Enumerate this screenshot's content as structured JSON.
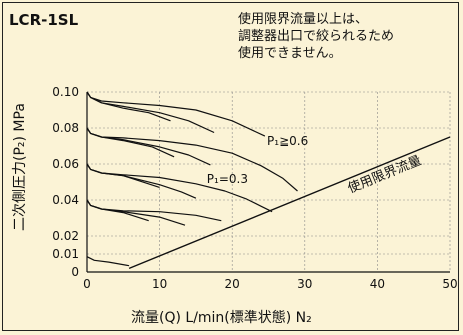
{
  "chart_data": {
    "type": "line",
    "title": "LCR-1SL",
    "note_lines": [
      "使用限界流量以上は、",
      "調整器出口で絞られるため",
      "使用できません。"
    ],
    "xlabel": "流量(Q) L/min(標準状態) N₂",
    "ylabel": "二次側圧力(P₂) MPa",
    "xlim": [
      0,
      50
    ],
    "ylim": [
      0,
      0.1
    ],
    "x_ticks": [
      "0",
      "10",
      "20",
      "30",
      "40",
      "50"
    ],
    "y_ticks": [
      "0",
      "0.01",
      "0.02",
      "0.04",
      "0.06",
      "0.08",
      "0.10"
    ],
    "y_tick_values": [
      0,
      0.01,
      0.02,
      0.04,
      0.06,
      0.08,
      0.1
    ],
    "x_tick_values": [
      0,
      10,
      20,
      30,
      40,
      50
    ],
    "grid": true,
    "annotations": [
      {
        "text": "P₁≧0.6",
        "x": 24.8,
        "y": 0.0705
      },
      {
        "text": "P₁=0.3",
        "x": 16.5,
        "y": 0.0495
      }
    ],
    "limit_line": {
      "name": "使用限界流量",
      "x": [
        5.8,
        50
      ],
      "y": [
        0.002,
        0.075
      ]
    },
    "series": [
      {
        "x": [
          0,
          0.5,
          2,
          5,
          10,
          15,
          20,
          24.5
        ],
        "y": [
          0.1,
          0.097,
          0.095,
          0.094,
          0.0925,
          0.09,
          0.084,
          0.0755
        ]
      },
      {
        "x": [
          0,
          0.5,
          2,
          5,
          10,
          14,
          17.5
        ],
        "y": [
          0.1,
          0.097,
          0.094,
          0.092,
          0.0885,
          0.084,
          0.0775
        ]
      },
      {
        "x": [
          0,
          0.5,
          2,
          5,
          8.5,
          11.5
        ],
        "y": [
          0.1,
          0.097,
          0.094,
          0.091,
          0.0885,
          0.084
        ]
      },
      {
        "x": [
          0,
          0.5,
          2,
          5,
          10,
          15,
          20,
          24,
          27,
          29
        ],
        "y": [
          0.08,
          0.077,
          0.075,
          0.0745,
          0.073,
          0.0705,
          0.066,
          0.059,
          0.052,
          0.045
        ]
      },
      {
        "x": [
          0,
          0.5,
          2,
          5,
          10,
          14,
          17
        ],
        "y": [
          0.08,
          0.077,
          0.075,
          0.0735,
          0.0695,
          0.065,
          0.0595
        ]
      },
      {
        "x": [
          0,
          0.5,
          2,
          5,
          9,
          12
        ],
        "y": [
          0.08,
          0.077,
          0.075,
          0.073,
          0.0695,
          0.064
        ]
      },
      {
        "x": [
          0,
          0.5,
          2,
          5,
          10,
          15,
          19,
          22,
          24,
          25.5
        ],
        "y": [
          0.06,
          0.057,
          0.055,
          0.054,
          0.0525,
          0.049,
          0.045,
          0.0405,
          0.0365,
          0.0335
        ]
      },
      {
        "x": [
          0,
          0.5,
          2,
          5,
          10,
          13,
          15
        ],
        "y": [
          0.06,
          0.057,
          0.055,
          0.0535,
          0.0485,
          0.0445,
          0.041
        ]
      },
      {
        "x": [
          0,
          0.5,
          2,
          5,
          10
        ],
        "y": [
          0.06,
          0.057,
          0.055,
          0.0535,
          0.047
        ]
      },
      {
        "x": [
          0,
          0.5,
          2,
          5,
          10,
          15,
          18.5
        ],
        "y": [
          0.04,
          0.037,
          0.035,
          0.034,
          0.0335,
          0.0315,
          0.0285
        ]
      },
      {
        "x": [
          0,
          0.5,
          2,
          5,
          10,
          13.5
        ],
        "y": [
          0.04,
          0.037,
          0.035,
          0.0335,
          0.0305,
          0.026
        ]
      },
      {
        "x": [
          0,
          0.5,
          2,
          5,
          8.5
        ],
        "y": [
          0.04,
          0.037,
          0.035,
          0.033,
          0.0285
        ]
      },
      {
        "x": [
          0,
          1,
          3,
          5.8
        ],
        "y": [
          0.0085,
          0.0065,
          0.0055,
          0.0035
        ]
      }
    ]
  }
}
